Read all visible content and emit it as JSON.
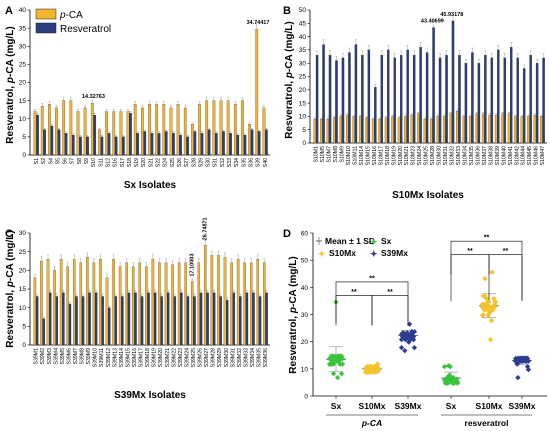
{
  "colors": {
    "pca": "#f2b531",
    "resveratrol": "#2b3e7e",
    "axis": "#000000",
    "sx": "#3cc43c",
    "s10mx": "#f5c32a",
    "s39mx": "#2d3e91",
    "bar_stroke": "#222222"
  },
  "chart_data": [
    {
      "panel": "A",
      "type": "bar",
      "ylabel": "Resveratrol, p-CA (mg/L)",
      "xlabel": "Sx Isolates",
      "ylim": [
        0,
        40
      ],
      "yticks": [
        0,
        5,
        10,
        15,
        20,
        25,
        30,
        35,
        40
      ],
      "legend": [
        "p-CA",
        "Resveratrol"
      ],
      "categories": [
        "S1",
        "S2",
        "S4",
        "S5",
        "S6",
        "S7",
        "S8",
        "S9",
        "S10",
        "S11",
        "S12",
        "S16",
        "S17",
        "S18",
        "S19",
        "S20",
        "S21",
        "S22",
        "S24",
        "S25",
        "S26",
        "S27",
        "S28",
        "S29",
        "S30",
        "S31",
        "S32",
        "S33",
        "S34",
        "S35",
        "S36",
        "S39",
        "S40"
      ],
      "series": [
        {
          "name": "p-CA",
          "values": [
            12,
            13.5,
            14,
            13,
            15,
            15,
            12,
            13,
            14.3,
            7,
            12,
            12,
            12,
            12,
            14,
            13,
            14,
            14,
            14,
            13,
            14,
            13,
            8.5,
            14,
            15,
            15,
            15,
            15,
            14,
            15,
            8.5,
            34.7,
            13
          ]
        },
        {
          "name": "Resveratrol",
          "values": [
            11,
            7,
            8,
            7,
            6,
            5.5,
            5,
            5,
            11,
            5,
            6,
            5,
            5,
            11.5,
            6,
            6.5,
            6,
            6,
            6.5,
            6,
            5.5,
            5,
            6.5,
            6,
            7,
            6,
            6.5,
            6,
            5.5,
            5.5,
            7,
            6.5,
            7
          ]
        }
      ],
      "annotations": [
        {
          "text": "14.32763",
          "index": 8
        },
        {
          "text": "34.74417",
          "index": 31
        }
      ]
    },
    {
      "panel": "B",
      "type": "bar",
      "ylabel": "Resveratrol, p-CA (mg/L)",
      "xlabel": "S10Mx Isolates",
      "ylim": [
        0,
        50
      ],
      "yticks": [
        0,
        5,
        10,
        15,
        20,
        25,
        30,
        35,
        40,
        45,
        50
      ],
      "categories": [
        "S10M1",
        "S10M5",
        "S10M7",
        "S10M8",
        "S10M9",
        "S10M10",
        "S10M11",
        "S10M14",
        "S10M15",
        "S10M16",
        "S10M17",
        "S10M18",
        "S10M19",
        "S10M20",
        "S10M21",
        "S10M23",
        "S10M24",
        "S10M25",
        "S10M28",
        "S10M30",
        "S10M31",
        "S10M32",
        "S10M33",
        "S10M34",
        "S10M35",
        "S10M36",
        "S10M37",
        "S10M38",
        "S10M39",
        "S10M40",
        "S10M41",
        "S10M42",
        "S10M44",
        "S10M45",
        "S10M46",
        "S10M47"
      ],
      "series": [
        {
          "name": "p-CA",
          "values": [
            9,
            9,
            9,
            9.5,
            10,
            10.5,
            10,
            10,
            9.5,
            9,
            9,
            9.5,
            10,
            9.5,
            10,
            10.5,
            11,
            9,
            9,
            10,
            10,
            11,
            12,
            10,
            10,
            11,
            11,
            10.5,
            10.5,
            11,
            11,
            10,
            10,
            10,
            10.5,
            10
          ]
        },
        {
          "name": "Resveratrol",
          "values": [
            33,
            37,
            33,
            31,
            32,
            34,
            37,
            33,
            35,
            21,
            33,
            35,
            32,
            33,
            35,
            33,
            36,
            34,
            43.4,
            32,
            33,
            45.9,
            33,
            30,
            34,
            30,
            33,
            32,
            35,
            32,
            36,
            32,
            28,
            33,
            30,
            32
          ]
        }
      ],
      "annotations": [
        {
          "text": "43.40699",
          "index": 18
        },
        {
          "text": "45.93178",
          "index": 21
        }
      ]
    },
    {
      "panel": "C",
      "type": "bar",
      "ylabel": "Resveratrol, p-CA (mg/L)",
      "xlabel": "S39Mx Isolates",
      "ylim": [
        0,
        30
      ],
      "yticks": [
        0,
        5,
        10,
        15,
        20,
        25,
        30
      ],
      "categories": [
        "S39M1",
        "S39M2",
        "S39M3",
        "S39M4",
        "S39M5",
        "S39M6",
        "S39M7",
        "S39M8",
        "S39M9",
        "S39M10",
        "S39M11",
        "S39M12",
        "S39M13",
        "S39M14",
        "S39M15",
        "S39M16",
        "S39M17",
        "S39M18",
        "S39M19",
        "S39M20",
        "S39M21",
        "S39M22",
        "S39M23",
        "S39M24",
        "S39M25",
        "S39M26",
        "S39M27",
        "S39M28",
        "S39M29",
        "S39M30",
        "S39M31",
        "S39M32",
        "S39M33",
        "S39M34",
        "S39M35",
        "S39M36"
      ],
      "series": [
        {
          "name": "p-CA",
          "values": [
            18,
            22.5,
            23,
            20,
            23,
            21,
            23,
            22,
            23.5,
            22,
            23,
            18,
            23,
            21,
            22,
            21,
            22,
            21,
            23,
            22,
            22,
            21.5,
            22,
            22,
            17,
            22,
            26.7,
            24,
            24,
            23.5,
            22,
            23,
            22,
            22,
            23,
            22
          ]
        },
        {
          "name": "Resveratrol",
          "values": [
            13,
            7,
            14,
            13,
            14,
            11,
            13,
            13,
            14,
            14,
            13,
            10,
            13,
            13,
            14,
            14,
            13,
            14,
            14,
            13,
            14,
            13,
            14,
            13,
            13,
            14,
            14,
            14,
            13,
            12,
            14,
            13,
            14,
            14,
            13,
            14
          ]
        }
      ],
      "annotations": [
        {
          "text": "17.10003",
          "index": 24
        },
        {
          "text": "26.74871",
          "index": 26
        }
      ]
    },
    {
      "panel": "D",
      "type": "scatter",
      "ylabel": "Resveratrol, p-CA (mg/L)",
      "ylim": [
        0,
        60
      ],
      "yticks": [
        0,
        10,
        20,
        30,
        40,
        50,
        60
      ],
      "categories": [
        "Sx",
        "S10Mx",
        "S39Mx",
        "Sx",
        "S10Mx",
        "S39Mx"
      ],
      "group_labels": [
        "p-CA",
        "resveratrol"
      ],
      "legend": [
        "Mean ± 1 SD",
        "Sx",
        "S10Mx",
        "S39Mx"
      ],
      "significance": "**",
      "summary": [
        {
          "group": "Sx",
          "measure": "p-CA",
          "mean": 13.5,
          "sd": 4.6
        },
        {
          "group": "S10Mx",
          "measure": "p-CA",
          "mean": 10.0,
          "sd": 0.8
        },
        {
          "group": "S39Mx",
          "measure": "p-CA",
          "mean": 22.3,
          "sd": 1.8
        },
        {
          "group": "Sx",
          "measure": "resveratrol",
          "mean": 6.6,
          "sd": 2.2
        },
        {
          "group": "S10Mx",
          "measure": "resveratrol",
          "mean": 33.2,
          "sd": 4.4
        },
        {
          "group": "S39Mx",
          "measure": "resveratrol",
          "mean": 13.1,
          "sd": 1.6
        }
      ],
      "points": [
        [
          12,
          13.5,
          14,
          13,
          15,
          15,
          12,
          13,
          14.3,
          7,
          12,
          12,
          12,
          12,
          14,
          13,
          14,
          14,
          14,
          13,
          14,
          13,
          8.5,
          14,
          15,
          15,
          15,
          15,
          14,
          15,
          8.5,
          34.7,
          13
        ],
        [
          9,
          9,
          9,
          9.5,
          10,
          10.5,
          10,
          10,
          9.5,
          9,
          9,
          9.5,
          10,
          9.5,
          10,
          10.5,
          11,
          9,
          9,
          10,
          10,
          11,
          12,
          10,
          10,
          11,
          11,
          10.5,
          10.5,
          11,
          11,
          10,
          10,
          10,
          10.5,
          10
        ],
        [
          18,
          22.5,
          23,
          20,
          23,
          21,
          23,
          22,
          23.5,
          22,
          23,
          18,
          23,
          21,
          22,
          21,
          22,
          21,
          23,
          22,
          22,
          21.5,
          22,
          22,
          17,
          22,
          26.7,
          24,
          24,
          23.5,
          22,
          23,
          22,
          22,
          23,
          22
        ],
        [
          11,
          7,
          8,
          7,
          6,
          5.5,
          5,
          5,
          11,
          5,
          6,
          5,
          5,
          11.5,
          6,
          6.5,
          6,
          6,
          6.5,
          6,
          5.5,
          5,
          6.5,
          6,
          7,
          6,
          6.5,
          6,
          5.5,
          5.5,
          7,
          6.5,
          7
        ],
        [
          33,
          37,
          33,
          31,
          32,
          34,
          37,
          33,
          35,
          21,
          33,
          35,
          32,
          33,
          35,
          33,
          36,
          34,
          43.4,
          32,
          33,
          45.9,
          33,
          30,
          34,
          30,
          33,
          32,
          35,
          32,
          36,
          32,
          28,
          33,
          30,
          32
        ],
        [
          13,
          7,
          14,
          13,
          14,
          11,
          13,
          13,
          14,
          14,
          13,
          10,
          13,
          13,
          14,
          14,
          13,
          14,
          14,
          13,
          14,
          13,
          14,
          13,
          13,
          14,
          14,
          14,
          13,
          12,
          14,
          13,
          14,
          14,
          13,
          14
        ]
      ]
    }
  ]
}
